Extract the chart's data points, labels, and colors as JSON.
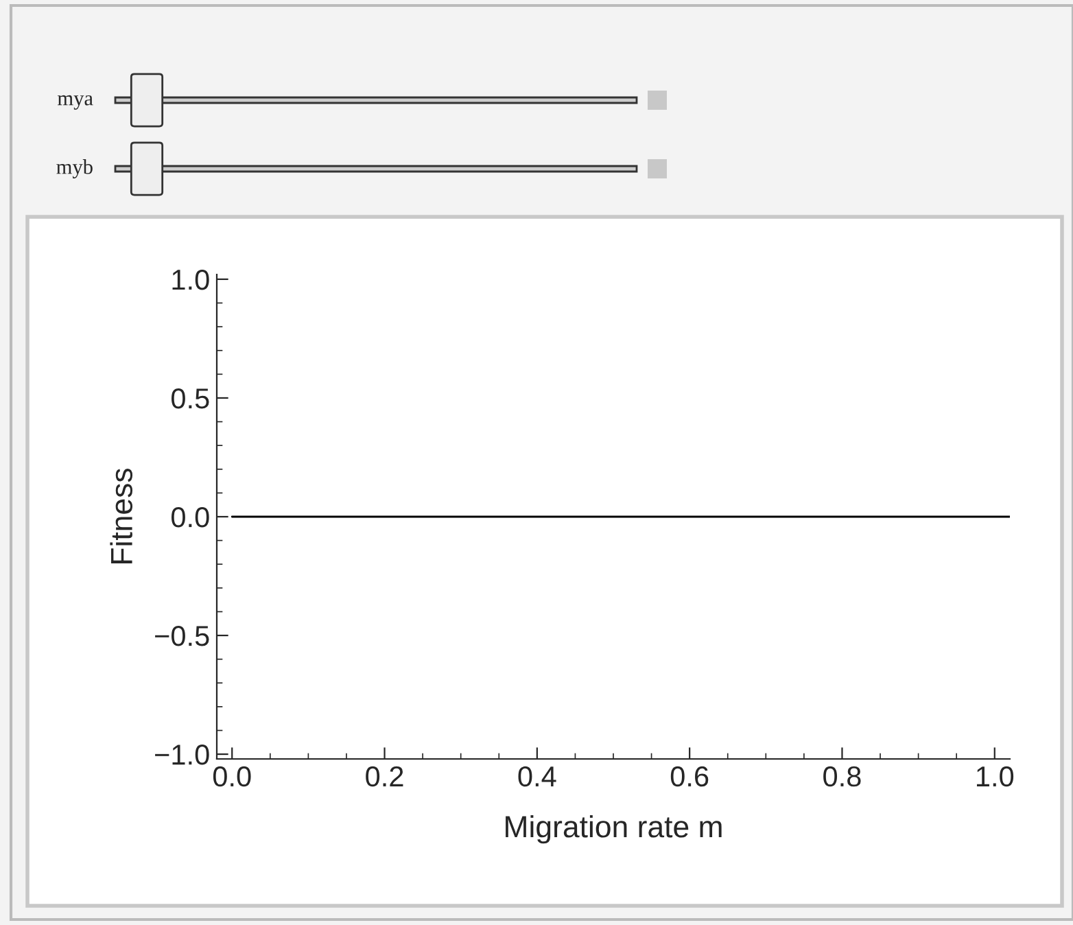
{
  "chart_data": {
    "type": "line",
    "xlabel": "Migration rate m",
    "ylabel": "Fitness",
    "annotations": [
      "mya",
      "myb"
    ],
    "series": [
      {
        "color": "#000000",
        "x": [
          0,
          1.02
        ],
        "values": [
          0,
          0
        ]
      }
    ],
    "xlim": [
      -0.02,
      1.02
    ],
    "ylim": [
      -1.02,
      1.02
    ],
    "xticks": [
      {
        "value": 0,
        "label": "0.0"
      },
      0.2,
      0.4,
      0.6,
      0.8,
      {
        "value": 1,
        "label": "1.0"
      }
    ],
    "yticks": [
      {
        "value": -1,
        "label": "−1.0"
      },
      {
        "value": -0.5,
        "label": "−0.5"
      },
      {
        "value": 0,
        "label": "0.0"
      },
      0.5,
      {
        "value": 1,
        "label": "1.0"
      }
    ],
    "grid": false,
    "legend": false,
    "marker": "none",
    "line_style": "solid"
  }
}
